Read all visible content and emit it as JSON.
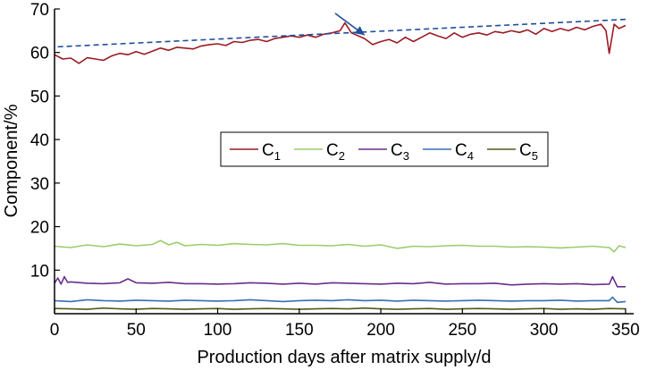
{
  "chart_data": {
    "type": "line",
    "xlabel": "Production days after matrix supply/d",
    "ylabel": "Component/%",
    "xlim": [
      0,
      355
    ],
    "ylim": [
      0,
      70
    ],
    "x_ticks": [
      0,
      50,
      100,
      150,
      200,
      250,
      300,
      350
    ],
    "y_ticks": [
      10,
      20,
      30,
      40,
      50,
      60,
      70
    ],
    "x_tick_labels": [
      "0",
      "50",
      "100",
      "150",
      "200",
      "250",
      "300",
      "350"
    ],
    "y_tick_labels": [
      "10",
      "20",
      "30",
      "40",
      "50",
      "60",
      "70"
    ],
    "grid": false,
    "legend_position": "center",
    "series": [
      {
        "name": "C",
        "subscript": "1",
        "color": "#9b1b24",
        "x": [
          0,
          5,
          10,
          15,
          20,
          25,
          30,
          35,
          40,
          45,
          50,
          55,
          60,
          65,
          70,
          75,
          80,
          85,
          90,
          95,
          100,
          105,
          110,
          115,
          120,
          125,
          130,
          135,
          140,
          145,
          150,
          155,
          160,
          165,
          170,
          175,
          178,
          182,
          185,
          190,
          195,
          200,
          205,
          210,
          215,
          220,
          225,
          230,
          235,
          240,
          245,
          250,
          255,
          260,
          265,
          270,
          275,
          280,
          285,
          290,
          295,
          300,
          305,
          310,
          315,
          320,
          325,
          330,
          335,
          338,
          340,
          343,
          346,
          350
        ],
        "values": [
          59.5,
          58.5,
          58.7,
          57.5,
          58.8,
          58.5,
          58.2,
          59.2,
          59.8,
          59.5,
          60.2,
          59.6,
          60.3,
          61,
          60.5,
          61.2,
          61,
          60.8,
          61.5,
          61.8,
          62,
          61.6,
          62.5,
          62.3,
          62.8,
          63,
          62.5,
          63.2,
          63.5,
          63.8,
          63.5,
          64,
          63.5,
          64.2,
          64.5,
          65,
          66.8,
          64.5,
          64,
          63.2,
          61.8,
          62.5,
          63,
          62.2,
          63.5,
          62.5,
          63.5,
          64.5,
          63.8,
          63.2,
          64.5,
          63.5,
          64.2,
          64.5,
          64,
          64.8,
          64.5,
          65,
          64.6,
          65.2,
          64.2,
          65.5,
          64.8,
          65.5,
          65,
          65.8,
          65.2,
          66,
          66.5,
          65,
          59.8,
          66.5,
          65.5,
          66.2
        ]
      },
      {
        "name": "C",
        "subscript": "2",
        "color": "#9acd6b",
        "x": [
          0,
          10,
          20,
          30,
          40,
          50,
          60,
          65,
          70,
          75,
          80,
          90,
          100,
          110,
          120,
          130,
          140,
          150,
          160,
          170,
          180,
          190,
          200,
          210,
          220,
          230,
          240,
          250,
          260,
          270,
          280,
          290,
          300,
          310,
          320,
          330,
          340,
          343,
          346,
          350
        ],
        "values": [
          15.5,
          15.2,
          15.8,
          15.4,
          16,
          15.6,
          15.9,
          16.8,
          15.8,
          16.4,
          15.6,
          15.9,
          15.7,
          16.1,
          15.9,
          15.8,
          16.1,
          15.7,
          15.7,
          15.6,
          15.9,
          15.5,
          15.8,
          15,
          15.5,
          15.4,
          15.6,
          15.7,
          15.5,
          15.5,
          15.3,
          15.4,
          15.3,
          15.1,
          15.3,
          15.5,
          15.2,
          14.2,
          15.6,
          15.2
        ]
      },
      {
        "name": "C",
        "subscript": "3",
        "color": "#6a2d8c",
        "x": [
          0,
          2,
          4,
          6,
          8,
          10,
          20,
          30,
          40,
          45,
          50,
          60,
          70,
          80,
          90,
          100,
          110,
          120,
          130,
          140,
          150,
          160,
          170,
          180,
          190,
          200,
          210,
          220,
          230,
          240,
          250,
          260,
          270,
          280,
          290,
          300,
          310,
          320,
          330,
          340,
          342,
          345,
          350
        ],
        "values": [
          7,
          8.2,
          6.8,
          8.5,
          7.2,
          7.3,
          7,
          6.9,
          7.1,
          8,
          7.1,
          7,
          7.2,
          6.9,
          6.9,
          6.8,
          6.9,
          7.1,
          7,
          6.8,
          7,
          6.8,
          7.1,
          7,
          6.9,
          6.8,
          7,
          6.9,
          7.2,
          6.8,
          6.9,
          6.9,
          7,
          6.6,
          6.8,
          6.9,
          6.8,
          6.9,
          6.7,
          6.8,
          8.5,
          6.2,
          6.2
        ]
      },
      {
        "name": "C",
        "subscript": "4",
        "color": "#3a6db5",
        "x": [
          0,
          10,
          20,
          30,
          40,
          50,
          60,
          70,
          80,
          90,
          100,
          110,
          120,
          130,
          140,
          150,
          160,
          170,
          180,
          190,
          200,
          210,
          220,
          230,
          240,
          250,
          260,
          270,
          280,
          290,
          300,
          310,
          320,
          330,
          340,
          342,
          345,
          350
        ],
        "values": [
          3,
          2.8,
          3.2,
          3,
          2.9,
          3.1,
          3,
          2.9,
          3.1,
          3,
          2.9,
          3,
          3.2,
          3,
          2.8,
          3,
          3.1,
          3,
          3.2,
          3,
          3.1,
          2.9,
          3.1,
          3,
          2.9,
          3,
          3.1,
          3,
          2.9,
          3,
          3,
          3.1,
          2.9,
          3,
          3,
          3.8,
          2.6,
          2.8
        ]
      },
      {
        "name": "C",
        "subscript": "5",
        "color": "#4f5a1c",
        "x": [
          0,
          10,
          20,
          30,
          40,
          50,
          60,
          70,
          80,
          90,
          100,
          110,
          120,
          130,
          140,
          150,
          160,
          170,
          180,
          190,
          200,
          210,
          220,
          230,
          240,
          250,
          260,
          270,
          280,
          290,
          300,
          310,
          320,
          330,
          340,
          350
        ],
        "values": [
          1.2,
          1.1,
          1,
          1.3,
          1.1,
          1,
          1.2,
          1.1,
          1,
          1.1,
          1.2,
          1,
          1.1,
          1.2,
          1.1,
          1,
          1.1,
          1.2,
          1.1,
          1.3,
          1.1,
          1,
          1.1,
          1.2,
          1,
          1.1,
          1.2,
          1.1,
          1,
          1.1,
          1.2,
          1,
          1.1,
          1,
          1.2,
          1.1
        ]
      }
    ],
    "trend_line": {
      "color": "#1f4e9b",
      "x": [
        2,
        350
      ],
      "values": [
        61.3,
        67.6
      ]
    },
    "arrow": {
      "color": "#1f4e9b",
      "from": [
        172,
        69
      ],
      "to": [
        190,
        64
      ]
    }
  }
}
